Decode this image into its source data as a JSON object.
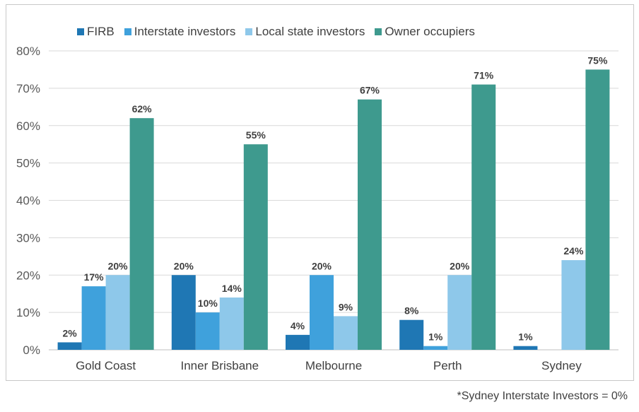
{
  "chart_data": {
    "type": "bar",
    "categories": [
      "Gold Coast",
      "Inner Brisbane",
      "Melbourne",
      "Perth",
      "Sydney"
    ],
    "series": [
      {
        "name": "FIRB",
        "color": "#1f77b4",
        "values": [
          2,
          20,
          4,
          8,
          1
        ],
        "labels": [
          "2%",
          "20%",
          "4%",
          "8%",
          "1%"
        ]
      },
      {
        "name": "Interstate investors",
        "color": "#3fa1dc",
        "values": [
          17,
          10,
          20,
          1,
          0
        ],
        "labels": [
          "17%",
          "10%",
          "20%",
          "1%",
          ""
        ]
      },
      {
        "name": "Local state investors",
        "color": "#8ec8ea",
        "values": [
          20,
          14,
          9,
          20,
          24
        ],
        "labels": [
          "20%",
          "14%",
          "9%",
          "20%",
          "24%"
        ]
      },
      {
        "name": "Owner occupiers",
        "color": "#3e9a8e",
        "values": [
          62,
          55,
          67,
          71,
          75
        ],
        "labels": [
          "62%",
          "55%",
          "67%",
          "71%",
          "75%"
        ]
      }
    ],
    "ylim": [
      0,
      80
    ],
    "yticks": [
      "0%",
      "10%",
      "20%",
      "30%",
      "40%",
      "50%",
      "60%",
      "70%",
      "80%"
    ],
    "grid": true,
    "legend_position": "top"
  },
  "footnote": "*Sydney Interstate Investors = 0%"
}
